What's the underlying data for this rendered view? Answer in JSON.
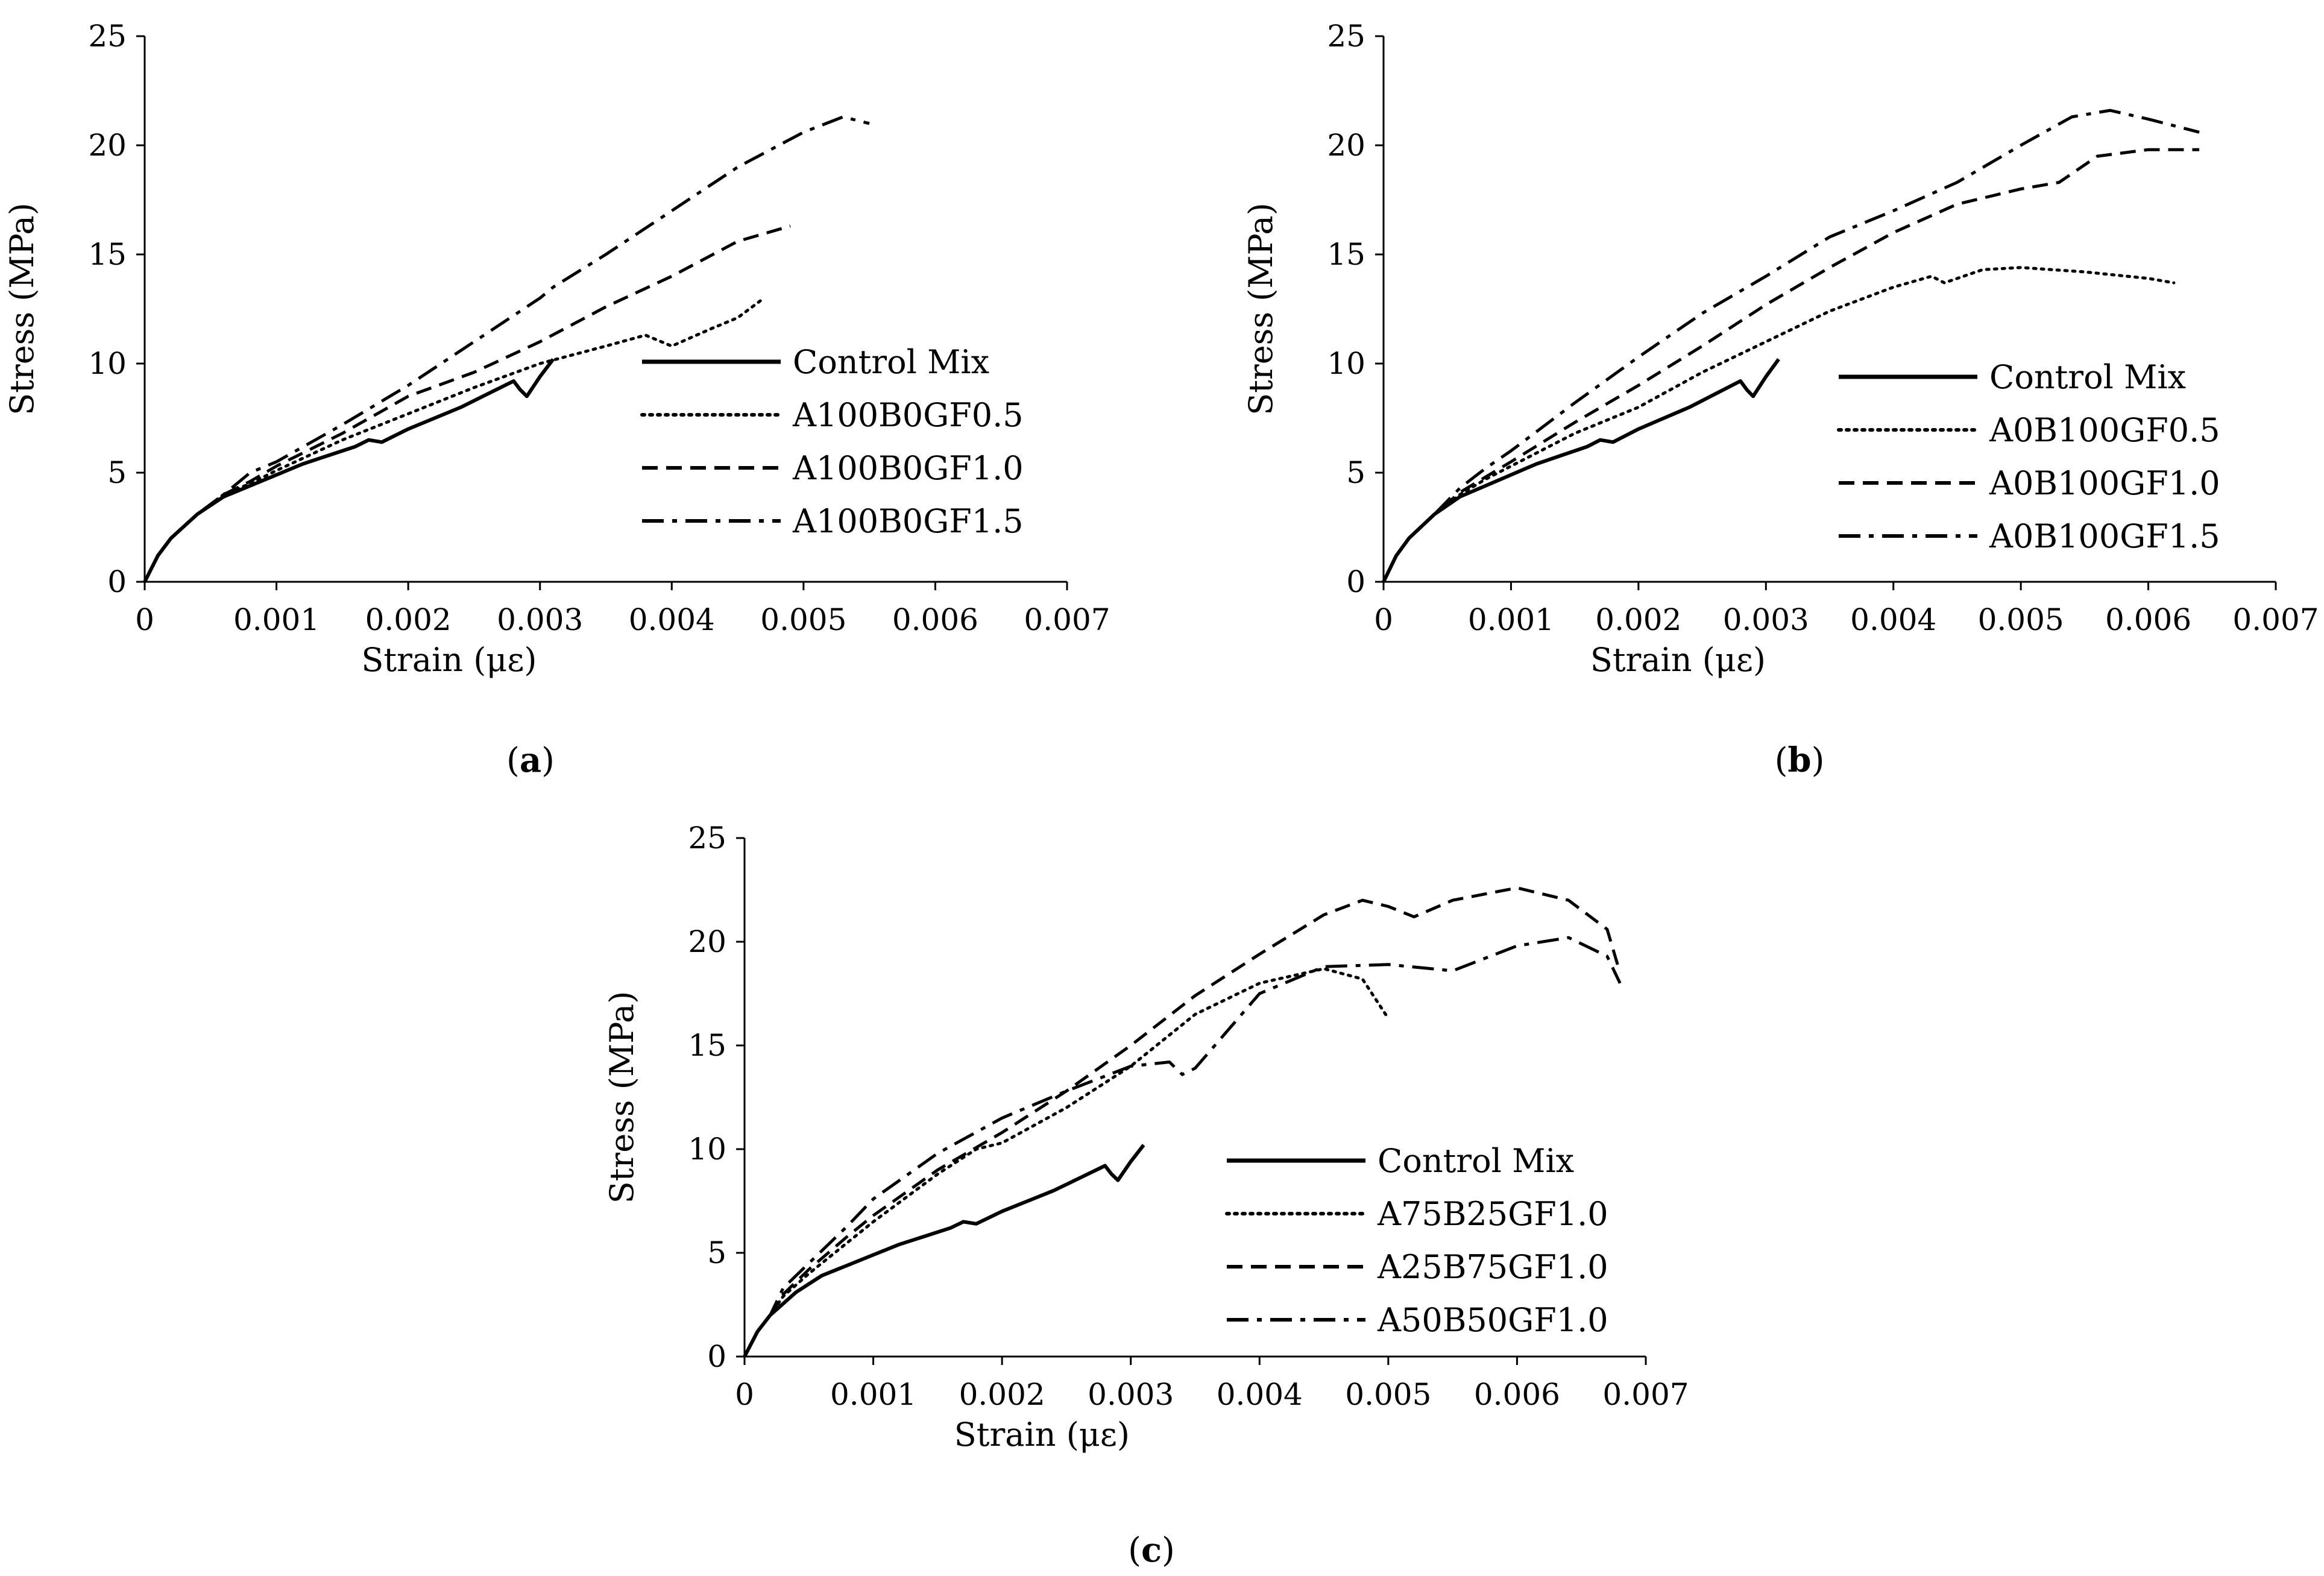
{
  "figure": {
    "panels": [
      {
        "id": "a",
        "label": "a"
      },
      {
        "id": "b",
        "label": "b"
      },
      {
        "id": "c",
        "label": "c"
      }
    ]
  },
  "chart_data": [
    {
      "panel": "a",
      "type": "line",
      "xlabel": "Strain (με)",
      "ylabel": "Stress (MPa)",
      "xlim": [
        0,
        0.007
      ],
      "ylim": [
        0,
        25
      ],
      "x_ticks": [
        "0",
        "0.001",
        "0.002",
        "0.003",
        "0.004",
        "0.005",
        "0.006",
        "0.007"
      ],
      "y_ticks": [
        "0",
        "5",
        "10",
        "15",
        "20",
        "25"
      ],
      "legend_position": "bottom-right",
      "series": [
        {
          "name": "Control Mix",
          "dash": "solid",
          "x": [
            0,
            0.0001,
            0.0002,
            0.0004,
            0.0006,
            0.0008,
            0.001,
            0.0012,
            0.0014,
            0.0016,
            0.0017,
            0.0018,
            0.002,
            0.0022,
            0.0024,
            0.0026,
            0.0028,
            0.00285,
            0.0029,
            0.003,
            0.0031
          ],
          "y": [
            0,
            1.2,
            2.0,
            3.1,
            3.9,
            4.4,
            4.9,
            5.4,
            5.8,
            6.2,
            6.5,
            6.4,
            7.0,
            7.5,
            8.0,
            8.6,
            9.2,
            8.8,
            8.5,
            9.4,
            10.2
          ]
        },
        {
          "name": "A100B0GF0.5",
          "dash": "dotted",
          "x": [
            0,
            0.0001,
            0.0002,
            0.0004,
            0.0006,
            0.0008,
            0.001,
            0.0015,
            0.002,
            0.0025,
            0.003,
            0.0035,
            0.0038,
            0.004,
            0.0043,
            0.0045,
            0.0047
          ],
          "y": [
            0,
            1.2,
            2.0,
            3.1,
            4.0,
            4.5,
            5.1,
            6.5,
            7.7,
            8.9,
            10.0,
            10.8,
            11.3,
            10.8,
            11.6,
            12.1,
            13.0
          ]
        },
        {
          "name": "A100B0GF1.0",
          "dash": "dashed",
          "x": [
            0,
            0.0001,
            0.0002,
            0.0004,
            0.0006,
            0.0008,
            0.001,
            0.0015,
            0.002,
            0.0025,
            0.003,
            0.0035,
            0.004,
            0.0045,
            0.0049
          ],
          "y": [
            0,
            1.2,
            2.0,
            3.1,
            4.0,
            4.6,
            5.3,
            6.8,
            8.5,
            9.6,
            11.0,
            12.6,
            14.0,
            15.6,
            16.3
          ]
        },
        {
          "name": "A100B0GF1.5",
          "dash": "dashdot",
          "x": [
            0,
            0.0001,
            0.0002,
            0.0004,
            0.0006,
            0.0008,
            0.001,
            0.0015,
            0.002,
            0.0025,
            0.003,
            0.0031,
            0.0035,
            0.004,
            0.0045,
            0.005,
            0.0053,
            0.0055
          ],
          "y": [
            0,
            1.2,
            2.0,
            3.1,
            4.0,
            5.0,
            5.5,
            7.2,
            9.0,
            11.0,
            13.0,
            13.5,
            15.0,
            17.0,
            19.0,
            20.6,
            21.3,
            21.0
          ]
        }
      ]
    },
    {
      "panel": "b",
      "type": "line",
      "xlabel": "Strain (με)",
      "ylabel": "Stress (MPa)",
      "xlim": [
        0,
        0.007
      ],
      "ylim": [
        0,
        25
      ],
      "x_ticks": [
        "0",
        "0.001",
        "0.002",
        "0.003",
        "0.004",
        "0.005",
        "0.006",
        "0.007"
      ],
      "y_ticks": [
        "0",
        "5",
        "10",
        "15",
        "20",
        "25"
      ],
      "legend_position": "bottom-right",
      "series": [
        {
          "name": "Control Mix",
          "dash": "solid",
          "x": [
            0,
            0.0001,
            0.0002,
            0.0004,
            0.0006,
            0.0008,
            0.001,
            0.0012,
            0.0014,
            0.0016,
            0.0017,
            0.0018,
            0.002,
            0.0022,
            0.0024,
            0.0026,
            0.0028,
            0.00285,
            0.0029,
            0.003,
            0.0031
          ],
          "y": [
            0,
            1.2,
            2.0,
            3.1,
            3.9,
            4.4,
            4.9,
            5.4,
            5.8,
            6.2,
            6.5,
            6.4,
            7.0,
            7.5,
            8.0,
            8.6,
            9.2,
            8.8,
            8.5,
            9.4,
            10.2
          ]
        },
        {
          "name": "A0B100GF0.5",
          "dash": "dotted",
          "x": [
            0,
            0.0001,
            0.0002,
            0.0004,
            0.0006,
            0.0008,
            0.001,
            0.0015,
            0.002,
            0.0025,
            0.003,
            0.0035,
            0.004,
            0.0043,
            0.0044,
            0.0047,
            0.005,
            0.0055,
            0.006,
            0.0062
          ],
          "y": [
            0,
            1.2,
            2.0,
            3.1,
            4.0,
            4.7,
            5.3,
            6.8,
            8.0,
            9.6,
            11.0,
            12.4,
            13.5,
            14.0,
            13.7,
            14.3,
            14.4,
            14.2,
            13.9,
            13.7
          ]
        },
        {
          "name": "A0B100GF1.0",
          "dash": "dashed",
          "x": [
            0,
            0.0001,
            0.0002,
            0.0004,
            0.0006,
            0.0008,
            0.001,
            0.0015,
            0.002,
            0.0025,
            0.003,
            0.0035,
            0.004,
            0.0045,
            0.005,
            0.0053,
            0.0056,
            0.006,
            0.0064
          ],
          "y": [
            0,
            1.2,
            2.0,
            3.1,
            4.1,
            4.8,
            5.5,
            7.3,
            9.0,
            10.8,
            12.7,
            14.4,
            16.0,
            17.3,
            18.0,
            18.3,
            19.5,
            19.8,
            19.8
          ]
        },
        {
          "name": "A0B100GF1.5",
          "dash": "dashdot",
          "x": [
            0,
            0.0001,
            0.0002,
            0.0004,
            0.0006,
            0.0008,
            0.001,
            0.0015,
            0.002,
            0.0025,
            0.003,
            0.0035,
            0.004,
            0.0045,
            0.005,
            0.0054,
            0.0057,
            0.006,
            0.0064
          ],
          "y": [
            0,
            1.2,
            2.0,
            3.1,
            4.3,
            5.2,
            6.0,
            8.2,
            10.3,
            12.3,
            14.0,
            15.8,
            17.0,
            18.3,
            20.0,
            21.3,
            21.6,
            21.2,
            20.6
          ]
        }
      ]
    },
    {
      "panel": "c",
      "type": "line",
      "xlabel": "Strain (με)",
      "ylabel": "Stress (MPa)",
      "xlim": [
        0,
        0.007
      ],
      "ylim": [
        0,
        25
      ],
      "x_ticks": [
        "0",
        "0.001",
        "0.002",
        "0.003",
        "0.004",
        "0.005",
        "0.006",
        "0.007"
      ],
      "y_ticks": [
        "0",
        "5",
        "10",
        "15",
        "20",
        "25"
      ],
      "legend_position": "bottom-right",
      "series": [
        {
          "name": "Control Mix",
          "dash": "solid",
          "x": [
            0,
            0.0001,
            0.0002,
            0.0004,
            0.0006,
            0.0008,
            0.001,
            0.0012,
            0.0014,
            0.0016,
            0.0017,
            0.0018,
            0.002,
            0.0022,
            0.0024,
            0.0026,
            0.0028,
            0.00285,
            0.0029,
            0.003,
            0.0031
          ],
          "y": [
            0,
            1.2,
            2.0,
            3.1,
            3.9,
            4.4,
            4.9,
            5.4,
            5.8,
            6.2,
            6.5,
            6.4,
            7.0,
            7.5,
            8.0,
            8.6,
            9.2,
            8.8,
            8.5,
            9.4,
            10.2
          ]
        },
        {
          "name": "A75B25GF1.0",
          "dash": "dotted",
          "x": [
            0,
            0.0001,
            0.0002,
            0.0003,
            0.0005,
            0.0008,
            0.001,
            0.0015,
            0.0018,
            0.002,
            0.0025,
            0.003,
            0.0035,
            0.004,
            0.0045,
            0.0048,
            0.005
          ],
          "y": [
            0,
            1.2,
            2.0,
            2.9,
            4.0,
            5.5,
            6.5,
            8.8,
            10.0,
            10.3,
            12.0,
            14.0,
            16.5,
            18.0,
            18.7,
            18.2,
            16.3
          ]
        },
        {
          "name": "A25B75GF1.0",
          "dash": "dashed",
          "x": [
            0,
            0.0001,
            0.0002,
            0.0003,
            0.0005,
            0.0008,
            0.001,
            0.0015,
            0.002,
            0.0025,
            0.003,
            0.0035,
            0.004,
            0.0045,
            0.0048,
            0.005,
            0.0052,
            0.0055,
            0.006,
            0.0064,
            0.0067,
            0.0068
          ],
          "y": [
            0,
            1.2,
            2.0,
            3.0,
            4.2,
            5.8,
            6.8,
            9.0,
            10.8,
            12.8,
            15.0,
            17.4,
            19.4,
            21.3,
            22.0,
            21.7,
            21.2,
            22.0,
            22.6,
            22.0,
            20.6,
            18.5
          ]
        },
        {
          "name": "A50B50GF1.0",
          "dash": "dashdot",
          "x": [
            0,
            0.0001,
            0.0002,
            0.0003,
            0.0005,
            0.0008,
            0.001,
            0.0015,
            0.002,
            0.0025,
            0.003,
            0.0033,
            0.0034,
            0.0035,
            0.004,
            0.0045,
            0.005,
            0.0055,
            0.006,
            0.0064,
            0.0067,
            0.0068
          ],
          "y": [
            0,
            1.2,
            2.0,
            3.3,
            4.5,
            6.3,
            7.6,
            9.8,
            11.5,
            12.8,
            14.0,
            14.2,
            13.6,
            13.9,
            17.5,
            18.8,
            18.9,
            18.6,
            19.8,
            20.2,
            19.3,
            18.0
          ]
        }
      ]
    }
  ]
}
